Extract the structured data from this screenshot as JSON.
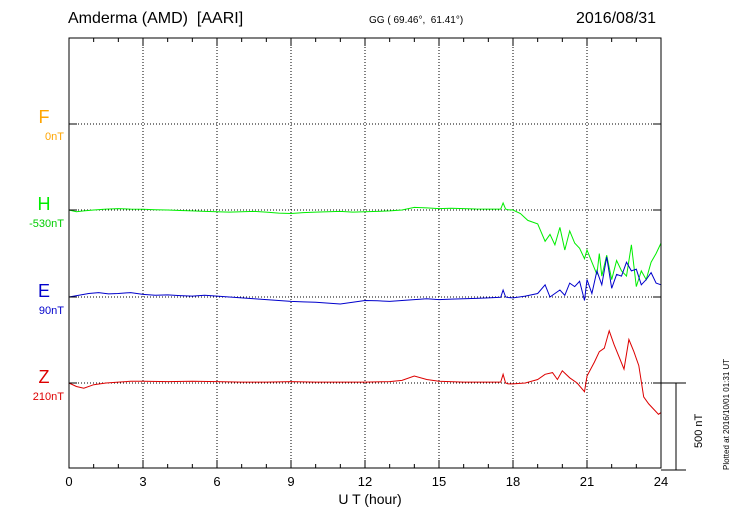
{
  "header": {
    "station": "Amderma (AMD)  [AARI]",
    "coords": "GG ( 69.46°,  61.41°)",
    "date": "2016/08/31"
  },
  "plotted_text": "Plotted at 2016/10/01 01:31 UT",
  "scale_label": "500 nT",
  "colors": {
    "F": "#ffa500",
    "H": "#00ee00",
    "E": "#0000cc",
    "Z": "#dd0000"
  },
  "chart_data": {
    "type": "line",
    "xlabel": "U T (hour)",
    "xlim": [
      0,
      24
    ],
    "x_ticks": [
      "0",
      "3",
      "6",
      "9",
      "12",
      "15",
      "18",
      "21",
      "24"
    ],
    "grid": true,
    "scale_bar_nT": 500,
    "components": [
      {
        "name": "F",
        "base_label": "0nT",
        "values": []
      },
      {
        "name": "H",
        "base_label": "-530nT",
        "x": [
          0,
          0.3,
          0.6,
          1,
          1.5,
          2,
          2.5,
          3,
          3.5,
          4,
          4.5,
          5,
          5.5,
          6,
          6.5,
          7,
          7.5,
          8,
          8.5,
          9,
          9.5,
          10,
          10.5,
          11,
          11.5,
          12,
          12.5,
          13,
          13.5,
          14,
          14.5,
          15,
          15.5,
          16,
          16.5,
          17,
          17.5,
          17.6,
          17.7,
          17.8,
          18,
          18.3,
          18.6,
          19,
          19.3,
          19.5,
          19.7,
          19.9,
          20.1,
          20.3,
          20.5,
          20.7,
          20.9,
          21,
          21.2,
          21.4,
          21.5,
          21.6,
          21.8,
          22,
          22.2,
          22.4,
          22.6,
          22.8,
          23,
          23.2,
          23.4,
          23.6,
          23.8,
          24
        ],
        "values": [
          0,
          -10,
          -5,
          0,
          5,
          8,
          5,
          4,
          2,
          0,
          -3,
          -5,
          -8,
          -10,
          -12,
          -10,
          -8,
          -12,
          -18,
          -20,
          -15,
          -12,
          -10,
          -8,
          -12,
          -10,
          -8,
          -5,
          0,
          15,
          12,
          8,
          10,
          8,
          6,
          5,
          5,
          40,
          5,
          2,
          0,
          -20,
          -60,
          -80,
          -180,
          -140,
          -200,
          -100,
          -230,
          -120,
          -190,
          -220,
          -280,
          -230,
          -300,
          -370,
          -250,
          -380,
          -260,
          -400,
          -290,
          -350,
          -380,
          -200,
          -440,
          -350,
          -400,
          -300,
          -250,
          -190
        ]
      },
      {
        "name": "E",
        "base_label": "90nT",
        "x": [
          0,
          0.4,
          0.8,
          1.2,
          1.6,
          2,
          2.5,
          3,
          3.5,
          4,
          4.5,
          5,
          5.5,
          6,
          6.5,
          7,
          7.5,
          8,
          8.5,
          9,
          9.5,
          10,
          10.5,
          11,
          11.5,
          12,
          12.5,
          13,
          13.5,
          14,
          14.5,
          15,
          15.5,
          16,
          16.5,
          17,
          17.5,
          17.6,
          17.7,
          17.8,
          18,
          18.5,
          19,
          19.3,
          19.5,
          19.7,
          19.9,
          20.1,
          20.3,
          20.5,
          20.7,
          20.9,
          21,
          21.2,
          21.4,
          21.6,
          21.8,
          22,
          22.2,
          22.4,
          22.6,
          22.8,
          23,
          23.2,
          23.4,
          23.6,
          23.8,
          24
        ],
        "values": [
          0,
          10,
          20,
          25,
          18,
          20,
          25,
          15,
          10,
          12,
          8,
          5,
          10,
          5,
          0,
          -5,
          -10,
          -15,
          -20,
          -25,
          -28,
          -30,
          -35,
          -40,
          -30,
          -20,
          -22,
          -25,
          -20,
          -15,
          -10,
          -15,
          -12,
          -10,
          -8,
          -5,
          -2,
          40,
          0,
          -3,
          -5,
          5,
          20,
          70,
          0,
          20,
          40,
          10,
          80,
          60,
          90,
          -20,
          100,
          20,
          150,
          70,
          230,
          50,
          130,
          120,
          200,
          150,
          160,
          70,
          100,
          140,
          80,
          70
        ]
      },
      {
        "name": "Z",
        "base_label": "210nT",
        "x": [
          0,
          0.3,
          0.6,
          1,
          1.5,
          2,
          2.5,
          3,
          4,
          5,
          6,
          7,
          8,
          9,
          10,
          11,
          12,
          13,
          13.5,
          14,
          14.5,
          15,
          16,
          17,
          17.5,
          17.6,
          17.7,
          17.8,
          18,
          18.5,
          19,
          19.3,
          19.6,
          19.8,
          20,
          20.3,
          20.6,
          20.9,
          21,
          21.3,
          21.5,
          21.7,
          21.9,
          22.1,
          22.3,
          22.5,
          22.7,
          22.9,
          23.1,
          23.3,
          23.5,
          23.7,
          23.9,
          24
        ],
        "values": [
          0,
          -20,
          -30,
          -10,
          0,
          5,
          10,
          10,
          8,
          10,
          8,
          5,
          5,
          8,
          5,
          5,
          5,
          8,
          15,
          40,
          20,
          10,
          5,
          5,
          5,
          50,
          0,
          -5,
          -5,
          0,
          20,
          50,
          60,
          20,
          70,
          30,
          0,
          -50,
          40,
          120,
          180,
          200,
          300,
          220,
          150,
          80,
          250,
          180,
          100,
          -80,
          -120,
          -150,
          -180,
          -170
        ]
      }
    ]
  }
}
